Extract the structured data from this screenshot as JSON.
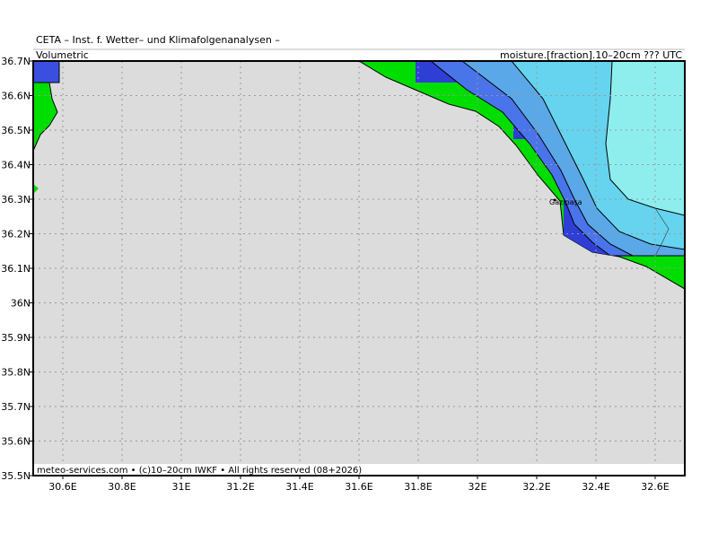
{
  "header": {
    "title": "CETA – Inst. f. Wetter– und Klimafolgenanalysen –",
    "left": "Volumetric",
    "right": "moisture.[fraction].10–20cm ??? UTC"
  },
  "footer": "meteo-services.com • (c)10–20cm IWKF • All rights reserved (08+2026)",
  "places": [
    {
      "label": "Gazipaşa"
    }
  ],
  "map": {
    "xlim": [
      30.5,
      32.7
    ],
    "ylim": [
      35.5,
      36.7
    ],
    "xticks": [
      {
        "value": 30.6,
        "label": "30.6E"
      },
      {
        "value": 30.8,
        "label": "30.8E"
      },
      {
        "value": 31,
        "label": "31E"
      },
      {
        "value": 31.2,
        "label": "31.2E"
      },
      {
        "value": 31.4,
        "label": "31.4E"
      },
      {
        "value": 31.6,
        "label": "31.6E"
      },
      {
        "value": 31.8,
        "label": "31.8E"
      },
      {
        "value": 32,
        "label": "32E"
      },
      {
        "value": 32.2,
        "label": "32.2E"
      },
      {
        "value": 32.4,
        "label": "32.4E"
      },
      {
        "value": 32.6,
        "label": "32.6E"
      }
    ],
    "yticks": [
      {
        "value": 36.7,
        "label": "36.7N"
      },
      {
        "value": 36.6,
        "label": "36.6N"
      },
      {
        "value": 36.5,
        "label": "36.5N"
      },
      {
        "value": 36.4,
        "label": "36.4N"
      },
      {
        "value": 36.3,
        "label": "36.3N"
      },
      {
        "value": 36.2,
        "label": "36.2N"
      },
      {
        "value": 36.1,
        "label": "36.1N"
      },
      {
        "value": 36,
        "label": "36N"
      },
      {
        "value": 35.9,
        "label": "35.9N"
      },
      {
        "value": 35.8,
        "label": "35.8N"
      },
      {
        "value": 35.7,
        "label": "35.7N"
      },
      {
        "value": 35.6,
        "label": "35.6N"
      },
      {
        "value": 35.5,
        "label": "35.5N"
      }
    ]
  }
}
